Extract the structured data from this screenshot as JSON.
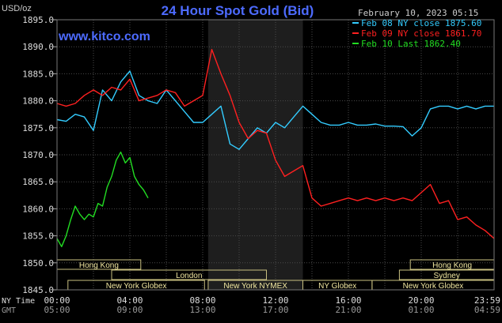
{
  "chart_data": {
    "type": "line",
    "title": "24 Hour Spot Gold (Bid)",
    "watermark": "www.kitco.com",
    "unit_label": "USD/oz",
    "timestamp": "February 10, 2023 05:15",
    "ylim": [
      1845.0,
      1895.0
    ],
    "y_ticks": [
      "1895.0",
      "1890.0",
      "1885.0",
      "1880.0",
      "1875.0",
      "1870.0",
      "1865.0",
      "1860.0",
      "1855.0",
      "1850.0",
      "1845.0"
    ],
    "x_range_hours": [
      0,
      24
    ],
    "time_rows": [
      {
        "label": "NY Time",
        "ticks": [
          "00:00",
          "04:00",
          "08:00",
          "12:00",
          "16:00",
          "20:00",
          "23:59"
        ]
      },
      {
        "label": "GMT",
        "ticks": [
          "05:00",
          "09:00",
          "13:00",
          "17:00",
          "21:00",
          "01:00",
          "04:59"
        ]
      }
    ],
    "legend": [
      {
        "text": "Feb 08 NY close 1875.60",
        "color": "#33ccff"
      },
      {
        "text": "Feb 09 NY close 1861.70",
        "color": "#ff2020"
      },
      {
        "text": "Feb 10 Last 1862.40",
        "color": "#22dd22"
      }
    ],
    "sessions": [
      {
        "name": "Hong Kong",
        "row": 0,
        "start": 0,
        "end": 4.6
      },
      {
        "name": "Hong Kong",
        "row": 0,
        "start": 19.4,
        "end": 24
      },
      {
        "name": "Sydney",
        "row": 1,
        "start": 18.8,
        "end": 24
      },
      {
        "name": "London",
        "row": 1,
        "start": 3,
        "end": 11.5
      },
      {
        "name": "New York Globex",
        "row": 2,
        "start": 0.6,
        "end": 8.1
      },
      {
        "name": "New York NYMEX",
        "row": 2,
        "start": 8.3,
        "end": 13.5
      },
      {
        "name": "NY Globex",
        "row": 2,
        "start": 13.5,
        "end": 17.3
      },
      {
        "name": "New York Globex",
        "row": 2,
        "start": 17.3,
        "end": 24
      }
    ],
    "shaded_hours": [
      8.3,
      13.5
    ],
    "series": [
      {
        "name": "Feb 08 NY close 1875.60",
        "color": "#33ccff",
        "x": [
          0,
          0.5,
          1,
          1.5,
          2,
          2.5,
          3,
          3.5,
          4,
          4.5,
          5,
          5.5,
          6,
          6.5,
          7,
          7.5,
          8,
          8.5,
          9,
          9.5,
          10,
          10.5,
          11,
          11.5,
          12,
          12.5,
          13,
          13.5,
          14,
          14.5,
          15,
          15.5,
          16,
          16.5,
          17,
          17.5,
          18,
          18.5,
          19,
          19.5,
          20,
          20.5,
          21,
          21.5,
          22,
          22.5,
          23,
          23.5,
          24
        ],
        "values": [
          1876.5,
          1876.2,
          1877.5,
          1877,
          1874.5,
          1882,
          1880,
          1883.5,
          1885.5,
          1881,
          1880,
          1879.5,
          1882,
          1880,
          1878,
          1876,
          1876,
          1877.5,
          1879,
          1872,
          1871,
          1873,
          1875,
          1874,
          1876,
          1875,
          1877,
          1879,
          1877.5,
          1876,
          1875.5,
          1875.5,
          1876,
          1875.5,
          1875.5,
          1875.7,
          1875.3,
          1875.3,
          1875.2,
          1873.5,
          1875,
          1878.5,
          1879,
          1879,
          1878.5,
          1879,
          1878.5,
          1879,
          1879
        ]
      },
      {
        "name": "Feb 09 NY close 1861.70",
        "color": "#ff2020",
        "x": [
          0,
          0.5,
          1,
          1.5,
          2,
          2.5,
          3,
          3.5,
          4,
          4.5,
          5,
          5.5,
          6,
          6.5,
          7,
          7.5,
          8,
          8.5,
          9,
          9.5,
          10,
          10.5,
          11,
          11.5,
          12,
          12.5,
          13,
          13.5,
          14,
          14.5,
          15,
          15.5,
          16,
          16.5,
          17,
          17.5,
          18,
          18.5,
          19,
          19.5,
          20,
          20.5,
          21,
          21.5,
          22,
          22.5,
          23,
          23.5,
          24
        ],
        "values": [
          1879.5,
          1879,
          1879.5,
          1881,
          1882,
          1881,
          1882.5,
          1882,
          1884,
          1880,
          1880.5,
          1881,
          1882,
          1881.5,
          1879,
          1880,
          1881,
          1889.5,
          1885,
          1881,
          1876,
          1873,
          1874.5,
          1874,
          1869,
          1866,
          1867,
          1868,
          1862,
          1860.5,
          1861,
          1861.5,
          1862,
          1861.5,
          1862,
          1861.5,
          1862,
          1861.5,
          1862,
          1861.5,
          1863,
          1864.5,
          1861,
          1861.5,
          1858,
          1858.5,
          1857,
          1856,
          1854.5
        ]
      },
      {
        "name": "Feb 10 Last 1862.40",
        "color": "#22dd22",
        "x": [
          0,
          0.25,
          0.5,
          0.75,
          1,
          1.25,
          1.5,
          1.75,
          2,
          2.25,
          2.5,
          2.75,
          3,
          3.25,
          3.5,
          3.75,
          4,
          4.25,
          4.5,
          4.75,
          5
        ],
        "values": [
          1854.5,
          1853,
          1855,
          1858,
          1860.5,
          1859,
          1858,
          1859,
          1858.5,
          1861,
          1860.5,
          1864,
          1866,
          1869,
          1870.5,
          1868.5,
          1869.5,
          1866,
          1864.5,
          1863.5,
          1862
        ]
      }
    ]
  }
}
